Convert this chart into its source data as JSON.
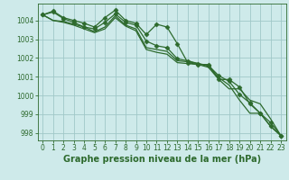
{
  "background_color": "#ceeaea",
  "grid_color": "#a0c8c8",
  "line_color": "#2d6a2d",
  "xlabel": "Graphe pression niveau de la mer (hPa)",
  "xlabel_fontsize": 7.0,
  "tick_fontsize": 5.5,
  "xlim": [
    -0.5,
    23.5
  ],
  "ylim": [
    997.6,
    1004.9
  ],
  "yticks": [
    998,
    999,
    1000,
    1001,
    1002,
    1003,
    1004
  ],
  "xticks": [
    0,
    1,
    2,
    3,
    4,
    5,
    6,
    7,
    8,
    9,
    10,
    11,
    12,
    13,
    14,
    15,
    16,
    17,
    18,
    19,
    20,
    21,
    22,
    23
  ],
  "series": [
    {
      "y": [
        1004.3,
        1004.5,
        1004.15,
        1004.0,
        1003.85,
        1003.65,
        1004.15,
        1004.55,
        1004.0,
        1003.85,
        1003.25,
        1003.8,
        1003.65,
        1002.75,
        1001.75,
        1001.65,
        1001.65,
        1000.85,
        1000.85,
        1000.45,
        999.55,
        999.05,
        998.55,
        997.85
      ],
      "marker": "D",
      "markersize": 2.5,
      "linewidth": 0.9
    },
    {
      "y": [
        1004.3,
        1004.45,
        1004.1,
        1003.9,
        1003.65,
        1003.55,
        1003.9,
        1004.35,
        1003.9,
        1003.75,
        1002.9,
        1002.65,
        1002.55,
        1001.95,
        1001.85,
        1001.7,
        1001.6,
        1001.05,
        1000.75,
        1000.05,
        999.6,
        999.05,
        998.35,
        997.85
      ],
      "marker": "D",
      "markersize": 2.5,
      "linewidth": 0.9
    },
    {
      "y": [
        1004.3,
        1004.0,
        1003.95,
        1003.8,
        1003.65,
        1003.4,
        1003.65,
        1004.25,
        1003.75,
        1003.55,
        1002.55,
        1002.45,
        1002.35,
        1001.85,
        1001.8,
        1001.7,
        1001.55,
        1000.95,
        1000.55,
        999.75,
        999.05,
        999.05,
        998.35,
        997.85
      ],
      "marker": null,
      "markersize": 0,
      "linewidth": 0.9
    },
    {
      "y": [
        1004.3,
        1004.0,
        1003.9,
        1003.75,
        1003.55,
        1003.35,
        1003.55,
        1004.15,
        1003.7,
        1003.45,
        1002.45,
        1002.3,
        1002.2,
        1001.75,
        1001.7,
        1001.65,
        1001.5,
        1000.85,
        1000.35,
        1000.35,
        999.75,
        999.55,
        998.75,
        997.85
      ],
      "marker": null,
      "markersize": 0,
      "linewidth": 0.9
    }
  ]
}
